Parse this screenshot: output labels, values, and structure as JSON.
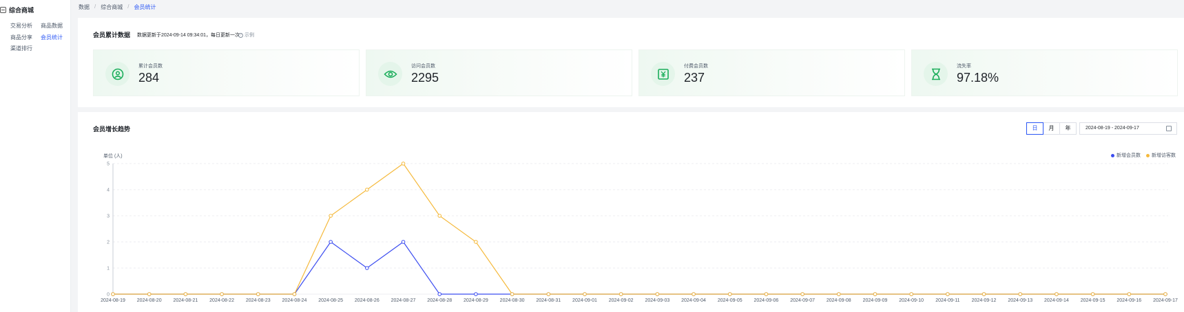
{
  "sidebar": {
    "title": "综合商城",
    "items": [
      {
        "label": "交易分析",
        "active": false
      },
      {
        "label": "商品数据",
        "active": false
      },
      {
        "label": "商品分享",
        "active": false
      },
      {
        "label": "会员统计",
        "active": true
      },
      {
        "label": "渠道排行",
        "active": false
      }
    ]
  },
  "breadcrumb": [
    "数据",
    "综合商城",
    "会员统计"
  ],
  "summary": {
    "title": "会员累计数据",
    "update_note": "数据更新于2024-09-14 09:34:01，每日更新一次",
    "example_label": "示例",
    "cards": [
      {
        "label": "累计会员数",
        "value": "284",
        "icon": "user-icon"
      },
      {
        "label": "访问会员数",
        "value": "2295",
        "icon": "eye-icon"
      },
      {
        "label": "付费会员数",
        "value": "237",
        "icon": "yen-icon"
      },
      {
        "label": "流失率",
        "value": "97.18%",
        "icon": "hourglass-icon"
      }
    ],
    "accent": "#1aad5a"
  },
  "trend": {
    "title": "会员增长趋势",
    "granularity": [
      "日",
      "月",
      "年"
    ],
    "granularity_selected": "日",
    "date_range": "2024-08-19 - 2024-09-17",
    "unit": "单位 (人)"
  },
  "chart_data": {
    "type": "line",
    "x": [
      "2024-08-19",
      "2024-08-20",
      "2024-08-21",
      "2024-08-22",
      "2024-08-23",
      "2024-08-24",
      "2024-08-25",
      "2024-08-26",
      "2024-08-27",
      "2024-08-28",
      "2024-08-29",
      "2024-08-30",
      "2024-08-31",
      "2024-09-01",
      "2024-09-02",
      "2024-09-03",
      "2024-09-04",
      "2024-09-05",
      "2024-09-06",
      "2024-09-07",
      "2024-09-08",
      "2024-09-09",
      "2024-09-10",
      "2024-09-11",
      "2024-09-12",
      "2024-09-13",
      "2024-09-14",
      "2024-09-15",
      "2024-09-16",
      "2024-09-17"
    ],
    "series": [
      {
        "name": "新增会员数",
        "color": "#3b4cf0",
        "values": [
          0,
          0,
          0,
          0,
          0,
          0,
          2,
          1,
          2,
          0,
          0,
          0,
          0,
          0,
          0,
          0,
          0,
          0,
          0,
          0,
          0,
          0,
          0,
          0,
          0,
          0,
          0,
          0,
          0,
          0
        ]
      },
      {
        "name": "新增访客数",
        "color": "#f5b93b",
        "values": [
          0,
          0,
          0,
          0,
          0,
          0,
          3,
          4,
          5,
          3,
          2,
          0,
          0,
          0,
          0,
          0,
          0,
          0,
          0,
          0,
          0,
          0,
          0,
          0,
          0,
          0,
          0,
          0,
          0,
          0
        ]
      }
    ],
    "ylim": [
      0,
      5
    ],
    "yticks": [
      0,
      1,
      2,
      3,
      4,
      5
    ],
    "grid": true,
    "legend": "top-right"
  }
}
